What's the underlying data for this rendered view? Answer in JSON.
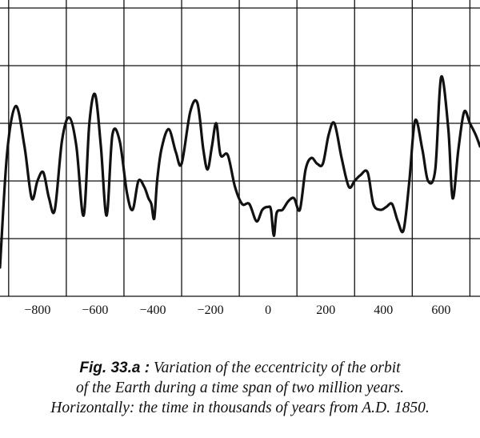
{
  "chart_data": {
    "type": "line",
    "xlabel": "",
    "ylabel": "",
    "xlim": [
      -930,
      735
    ],
    "ylim": [
      0,
      5
    ],
    "grid": true,
    "x_ticks": [
      -800,
      -600,
      -400,
      -200,
      0,
      200,
      400,
      600
    ],
    "x_tick_labels": [
      "−800",
      "−600",
      "−400",
      "−200",
      "0",
      "200",
      "400",
      "600"
    ],
    "line_color": "#111111",
    "series": [
      {
        "x": [
          -930,
          -905,
          -875,
          -845,
          -820,
          -800,
          -780,
          -760,
          -740,
          -715,
          -690,
          -665,
          -640,
          -620,
          -600,
          -580,
          -560,
          -540,
          -515,
          -490,
          -470,
          -450,
          -430,
          -415,
          -405,
          -395,
          -385,
          -370,
          -345,
          -320,
          -300,
          -270,
          -245,
          -225,
          -210,
          -195,
          -180,
          -165,
          -140,
          -115,
          -90,
          -65,
          -40,
          -20,
          0,
          10,
          20,
          30,
          50,
          70,
          90,
          110,
          130,
          150,
          170,
          190,
          210,
          230,
          255,
          280,
          300,
          320,
          345,
          365,
          390,
          410,
          430,
          450,
          470,
          490,
          510,
          535,
          555,
          580,
          600,
          625,
          640,
          660,
          680,
          700,
          720,
          735
        ],
        "y": [
          0.5,
          2.5,
          3.3,
          2.6,
          1.7,
          2.0,
          2.15,
          1.7,
          1.5,
          2.7,
          3.1,
          2.6,
          1.4,
          3.0,
          3.5,
          2.6,
          1.4,
          2.8,
          2.7,
          1.8,
          1.5,
          2.0,
          1.9,
          1.7,
          1.6,
          1.35,
          2.0,
          2.55,
          2.9,
          2.5,
          2.3,
          3.2,
          3.35,
          2.55,
          2.2,
          2.6,
          3.0,
          2.45,
          2.45,
          1.9,
          1.6,
          1.6,
          1.3,
          1.5,
          1.55,
          1.5,
          1.05,
          1.45,
          1.5,
          1.65,
          1.7,
          1.5,
          2.2,
          2.4,
          2.3,
          2.3,
          2.8,
          3.0,
          2.4,
          1.9,
          2.0,
          2.1,
          2.15,
          1.6,
          1.5,
          1.55,
          1.6,
          1.3,
          1.15,
          2.0,
          3.05,
          2.55,
          2.0,
          2.2,
          3.8,
          2.9,
          1.7,
          2.55,
          3.2,
          3.0,
          2.8,
          2.6
        ]
      }
    ]
  },
  "caption": {
    "fig_label": "Fig. 33.a :",
    "line1": "Variation of the eccentricity of the orbit",
    "line2": "of the Earth during a time span of two million years.",
    "line3": "Horizontally: the time in thousands of years from A.D. 1850."
  }
}
